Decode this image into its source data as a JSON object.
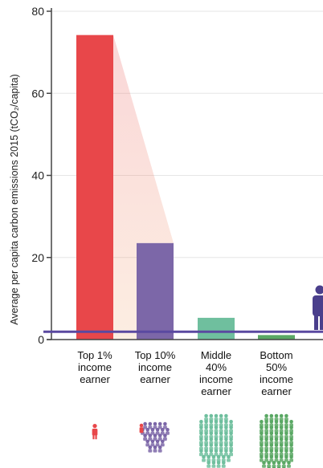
{
  "chart_data": {
    "type": "bar",
    "title": "",
    "xlabel": "",
    "ylabel": "Average per capita carbon emissions 2015 (tCO₂/capita)",
    "ylim": [
      0,
      80
    ],
    "yticks": [
      0,
      20,
      40,
      60,
      80
    ],
    "grid": true,
    "categories": [
      [
        "Top 1%",
        "income",
        "earner"
      ],
      [
        "Top 10%",
        "income",
        "earner"
      ],
      [
        "Middle",
        "40%",
        "income",
        "earner"
      ],
      [
        "Bottom",
        "50%",
        "income",
        "earner"
      ]
    ],
    "values": [
      74.2,
      23.5,
      5.3,
      1.1
    ],
    "colors": [
      "#e8474a",
      "#7c67a8",
      "#6fbf9e",
      "#5aa864"
    ],
    "reference_line": {
      "value": 1.9,
      "color": "#5a49a0"
    },
    "icons": [
      "person-icon",
      "crowd-icon",
      "crowd-icon",
      "crowd-icon"
    ],
    "icon_colors": [
      "#e8474a",
      "#7c67a8",
      "#6fbf9e",
      "#5aa864"
    ],
    "side_icon": {
      "name": "person-icon",
      "color": "#4a3f8c"
    }
  }
}
